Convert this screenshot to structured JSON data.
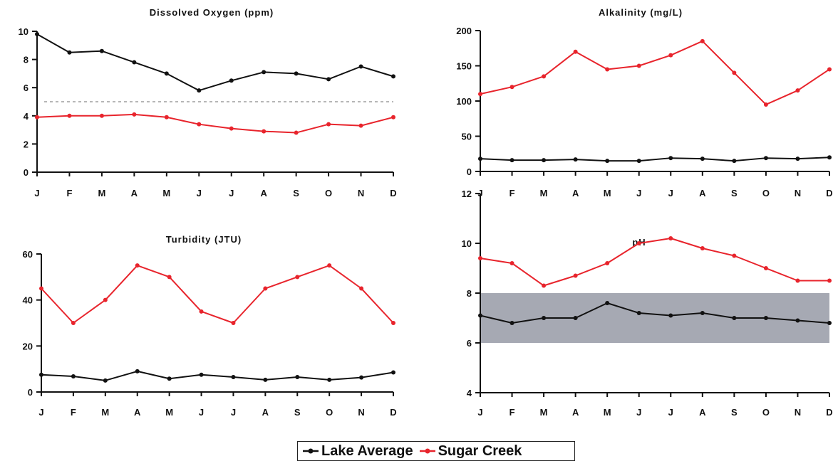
{
  "legend": {
    "items": [
      {
        "label": "Lake Average",
        "color": "#111111"
      },
      {
        "label": "Sugar Creek",
        "color": "#e8242c"
      }
    ]
  },
  "chart_data": [
    {
      "type": "line",
      "title": "Dissolved Oxygen (ppm)",
      "categories": [
        "J",
        "F",
        "M",
        "A",
        "M",
        "J",
        "J",
        "A",
        "S",
        "O",
        "N",
        "D"
      ],
      "ylim": [
        0,
        10
      ],
      "yticks": [
        0,
        2,
        4,
        6,
        8,
        10
      ],
      "reference_line": 5,
      "series": [
        {
          "name": "Lake Average",
          "color": "#111111",
          "values": [
            9.8,
            8.5,
            8.6,
            7.8,
            7.0,
            5.8,
            6.5,
            7.1,
            7.0,
            6.6,
            7.5,
            6.8
          ]
        },
        {
          "name": "Sugar Creek",
          "color": "#e8242c",
          "values": [
            3.9,
            4.0,
            4.0,
            4.1,
            3.9,
            3.4,
            3.1,
            2.9,
            2.8,
            3.4,
            3.3,
            3.9
          ]
        }
      ]
    },
    {
      "type": "line",
      "title": "Alkalinity (mg/L)",
      "categories": [
        "J",
        "F",
        "M",
        "A",
        "M",
        "J",
        "J",
        "A",
        "S",
        "O",
        "N",
        "D"
      ],
      "ylim": [
        0,
        200
      ],
      "yticks": [
        0,
        50,
        100,
        150,
        200
      ],
      "series": [
        {
          "name": "Lake Average",
          "color": "#111111",
          "values": [
            18,
            16,
            16,
            17,
            15,
            15,
            19,
            18,
            15,
            19,
            18,
            20
          ]
        },
        {
          "name": "Sugar Creek",
          "color": "#e8242c",
          "values": [
            110,
            120,
            135,
            170,
            145,
            150,
            165,
            185,
            140,
            95,
            115,
            145
          ]
        }
      ]
    },
    {
      "type": "line",
      "title": "Turbidity (JTU)",
      "categories": [
        "J",
        "F",
        "M",
        "A",
        "M",
        "J",
        "J",
        "A",
        "S",
        "O",
        "N",
        "D"
      ],
      "ylim": [
        0,
        60
      ],
      "yticks": [
        0,
        20,
        40,
        60
      ],
      "series": [
        {
          "name": "Lake Average",
          "color": "#111111",
          "values": [
            7.5,
            6.8,
            5,
            9,
            5.8,
            7.5,
            6.5,
            5.3,
            6.5,
            5.3,
            6.3,
            8.5
          ]
        },
        {
          "name": "Sugar Creek",
          "color": "#e8242c",
          "values": [
            45,
            30,
            40,
            55,
            50,
            35,
            30,
            45,
            50,
            55,
            45,
            30
          ]
        }
      ]
    },
    {
      "type": "line",
      "title": "pH",
      "categories": [
        "J",
        "F",
        "M",
        "A",
        "M",
        "J",
        "J",
        "A",
        "S",
        "O",
        "N",
        "D"
      ],
      "ylim": [
        4,
        12
      ],
      "yticks": [
        4,
        6,
        8,
        10,
        12
      ],
      "band": [
        6,
        8
      ],
      "series": [
        {
          "name": "Lake Average",
          "color": "#111111",
          "values": [
            7.1,
            6.8,
            7.0,
            7.0,
            7.6,
            7.2,
            7.1,
            7.2,
            7.0,
            7.0,
            6.9,
            6.8
          ]
        },
        {
          "name": "Sugar Creek",
          "color": "#e8242c",
          "values": [
            9.4,
            9.2,
            8.3,
            8.7,
            9.2,
            10.0,
            10.2,
            9.8,
            9.5,
            9.0,
            8.5,
            8.5
          ]
        }
      ]
    }
  ]
}
